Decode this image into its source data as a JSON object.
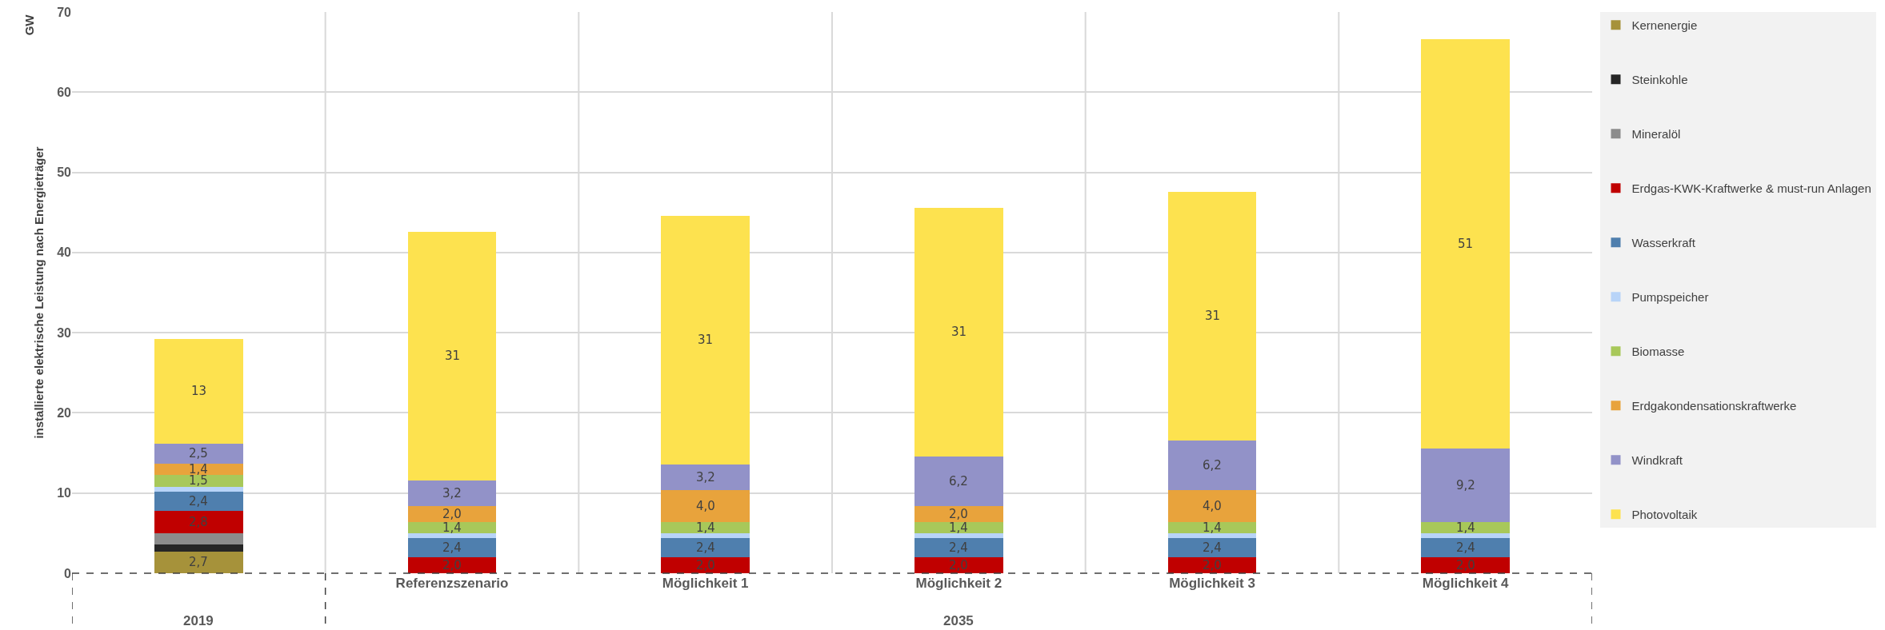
{
  "chart_data": {
    "type": "bar",
    "stacked": true,
    "ylabel": "installierte elektrische Leistung nach Energieträger",
    "categories": [
      null,
      "Referenzszenario",
      "Möglichkeit 1",
      "Möglichkeit 2",
      "Möglichkeit 3",
      "Möglichkeit 4"
    ],
    "series": [
      {
        "name": "Kernenergie",
        "color": "#a6923a",
        "values": [
          2.7,
          0,
          0,
          0,
          0,
          0
        ],
        "value_labels": [
          "2,7",
          null,
          null,
          null,
          null,
          null
        ]
      },
      {
        "name": "Steinkohle",
        "color": "#262626",
        "values": [
          0.9,
          0,
          0,
          0,
          0,
          0
        ],
        "value_labels": [
          null,
          null,
          null,
          null,
          null,
          null
        ]
      },
      {
        "name": "Mineralöl",
        "color": "#8c8c8c",
        "values": [
          1.4,
          0,
          0,
          0,
          0,
          0
        ],
        "value_labels": [
          null,
          null,
          null,
          null,
          null,
          null
        ]
      },
      {
        "name": "Erdgas-KWK-Kraftwerke & must-run Anlagen",
        "color": "#c00000",
        "values": [
          2.8,
          2.0,
          2.0,
          2.0,
          2.0,
          2.0
        ],
        "value_labels": [
          "2,8",
          "2,0",
          "2,0",
          "2,0",
          "2,0",
          "2,0"
        ]
      },
      {
        "name": "Wasserkraft",
        "color": "#4f7fae",
        "values": [
          2.4,
          2.4,
          2.4,
          2.4,
          2.4,
          2.4
        ],
        "value_labels": [
          "2,4",
          "2,4",
          "2,4",
          "2,4",
          "2,4",
          "2,4"
        ]
      },
      {
        "name": "Pumpspeicher",
        "color": "#b8d4f8",
        "values": [
          0.6,
          0.6,
          0.6,
          0.6,
          0.6,
          0.6
        ],
        "value_labels": [
          null,
          null,
          null,
          null,
          null,
          null
        ]
      },
      {
        "name": "Biomasse",
        "color": "#a8c85a",
        "values": [
          1.5,
          1.4,
          1.4,
          1.4,
          1.4,
          1.4
        ],
        "value_labels": [
          "1,5",
          "1,4",
          "1,4",
          "1,4",
          "1,4",
          "1,4"
        ]
      },
      {
        "name": "Erdgakondensationskraftwerke",
        "color": "#e8a33c",
        "values": [
          1.4,
          2.0,
          4.0,
          2.0,
          4.0,
          0
        ],
        "value_labels": [
          "1,4",
          "2,0",
          "4,0",
          "2,0",
          "4,0",
          null
        ]
      },
      {
        "name": "Windkraft",
        "color": "#9292c8",
        "values": [
          2.5,
          3.2,
          3.2,
          6.2,
          6.2,
          9.2
        ],
        "value_labels": [
          "2,5",
          "3,2",
          "3,2",
          "6,2",
          "6,2",
          "9,2"
        ]
      },
      {
        "name": "Photovoltaik",
        "color": "#fde24f",
        "values": [
          13,
          31,
          31,
          31,
          31,
          51
        ],
        "value_labels": [
          "13",
          "31",
          "31",
          "31",
          "31",
          "51"
        ]
      }
    ],
    "ylim": [
      0,
      70
    ],
    "yticks": [
      0,
      10,
      20,
      30,
      40,
      50,
      60,
      70
    ],
    "grid": true,
    "legend": "right",
    "annotations": [
      "GW",
      "2019",
      "2035"
    ]
  }
}
